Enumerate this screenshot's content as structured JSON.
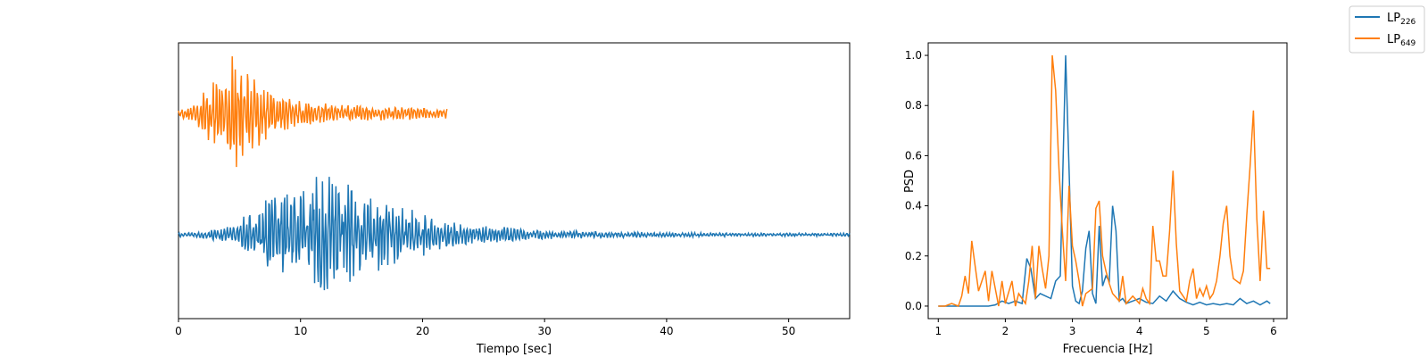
{
  "legend": {
    "entries": [
      {
        "base": "LP",
        "sub": "226",
        "color": "#1f77b4"
      },
      {
        "base": "LP",
        "sub": "649",
        "color": "#ff7f0e"
      }
    ]
  },
  "chart_data": [
    {
      "type": "line",
      "xlabel": "Tiempo [sec]",
      "ylabel": "",
      "xlim": [
        0,
        55
      ],
      "x_ticks": [
        0,
        10,
        20,
        30,
        40,
        50
      ],
      "y_ticks_shown": false,
      "note_series": "Normalized waveforms stacked vertically (offsets applied for display)",
      "series": [
        {
          "name": "LP649",
          "color": "#ff7f0e",
          "x_start": 0,
          "x_end": 22,
          "vertical_offset": 1.0,
          "envelope": [
            [
              0,
              0.05
            ],
            [
              1,
              0.12
            ],
            [
              2,
              0.3
            ],
            [
              3,
              0.55
            ],
            [
              4,
              0.75
            ],
            [
              4.5,
              0.95
            ],
            [
              5,
              0.8
            ],
            [
              6,
              0.6
            ],
            [
              7,
              0.45
            ],
            [
              8,
              0.3
            ],
            [
              9,
              0.25
            ],
            [
              10,
              0.2
            ],
            [
              12,
              0.15
            ],
            [
              14,
              0.13
            ],
            [
              16,
              0.12
            ],
            [
              18,
              0.1
            ],
            [
              20,
              0.09
            ],
            [
              22,
              0.09
            ]
          ]
        },
        {
          "name": "LP226",
          "color": "#1f77b4",
          "x_start": 0,
          "x_end": 55,
          "vertical_offset": 0.0,
          "envelope": [
            [
              0,
              0.03
            ],
            [
              2,
              0.05
            ],
            [
              4,
              0.1
            ],
            [
              6,
              0.3
            ],
            [
              8,
              0.55
            ],
            [
              10,
              0.7
            ],
            [
              12,
              0.75
            ],
            [
              13.5,
              0.9
            ],
            [
              15,
              0.55
            ],
            [
              17,
              0.45
            ],
            [
              19,
              0.35
            ],
            [
              21,
              0.22
            ],
            [
              24,
              0.12
            ],
            [
              27,
              0.1
            ],
            [
              30,
              0.06
            ],
            [
              35,
              0.04
            ],
            [
              40,
              0.03
            ],
            [
              45,
              0.025
            ],
            [
              50,
              0.02
            ],
            [
              55,
              0.02
            ]
          ]
        }
      ]
    },
    {
      "type": "line",
      "xlabel": "Frecuencia [Hz]",
      "ylabel": "PSD",
      "xlim": [
        0.85,
        6.2
      ],
      "ylim": [
        -0.05,
        1.05
      ],
      "x_ticks": [
        1,
        2,
        3,
        4,
        5,
        6
      ],
      "y_ticks": [
        0.0,
        0.2,
        0.4,
        0.6,
        0.8,
        1.0
      ],
      "y_tick_labels": [
        "0.0",
        "0.2",
        "0.4",
        "0.6",
        "0.8",
        "1.0"
      ],
      "series": [
        {
          "name": "LP226",
          "color": "#1f77b4",
          "x": [
            1.0,
            1.2,
            1.4,
            1.6,
            1.75,
            1.85,
            1.95,
            2.05,
            2.15,
            2.25,
            2.32,
            2.38,
            2.45,
            2.52,
            2.6,
            2.68,
            2.75,
            2.82,
            2.9,
            2.95,
            3.0,
            3.05,
            3.1,
            3.15,
            3.2,
            3.25,
            3.3,
            3.35,
            3.4,
            3.45,
            3.5,
            3.55,
            3.6,
            3.65,
            3.7,
            3.75,
            3.8,
            3.9,
            4.0,
            4.1,
            4.2,
            4.3,
            4.4,
            4.5,
            4.6,
            4.7,
            4.8,
            4.9,
            5.0,
            5.1,
            5.2,
            5.3,
            5.4,
            5.5,
            5.6,
            5.7,
            5.8,
            5.9,
            5.95
          ],
          "y": [
            0.0,
            0.0,
            0.0,
            0.0,
            0.0,
            0.005,
            0.02,
            0.01,
            0.02,
            0.01,
            0.19,
            0.15,
            0.03,
            0.05,
            0.04,
            0.03,
            0.1,
            0.12,
            1.0,
            0.55,
            0.08,
            0.02,
            0.01,
            0.06,
            0.23,
            0.3,
            0.05,
            0.01,
            0.32,
            0.08,
            0.12,
            0.1,
            0.4,
            0.3,
            0.02,
            0.03,
            0.01,
            0.02,
            0.03,
            0.015,
            0.01,
            0.04,
            0.02,
            0.06,
            0.03,
            0.015,
            0.005,
            0.015,
            0.005,
            0.01,
            0.005,
            0.01,
            0.005,
            0.03,
            0.01,
            0.02,
            0.005,
            0.02,
            0.01
          ]
        },
        {
          "name": "LP649",
          "color": "#ff7f0e",
          "x": [
            1.0,
            1.1,
            1.2,
            1.3,
            1.35,
            1.4,
            1.45,
            1.5,
            1.6,
            1.7,
            1.75,
            1.8,
            1.9,
            1.95,
            2.0,
            2.1,
            2.15,
            2.2,
            2.3,
            2.35,
            2.4,
            2.45,
            2.5,
            2.55,
            2.6,
            2.65,
            2.7,
            2.75,
            2.8,
            2.85,
            2.9,
            2.95,
            3.0,
            3.05,
            3.1,
            3.15,
            3.2,
            3.3,
            3.35,
            3.4,
            3.45,
            3.5,
            3.55,
            3.6,
            3.7,
            3.75,
            3.8,
            3.9,
            4.0,
            4.05,
            4.1,
            4.15,
            4.2,
            4.25,
            4.3,
            4.35,
            4.4,
            4.45,
            4.5,
            4.55,
            4.6,
            4.7,
            4.75,
            4.8,
            4.85,
            4.9,
            4.95,
            5.0,
            5.05,
            5.1,
            5.15,
            5.2,
            5.25,
            5.3,
            5.35,
            5.4,
            5.5,
            5.55,
            5.6,
            5.65,
            5.7,
            5.75,
            5.8,
            5.85,
            5.9,
            5.95
          ],
          "y": [
            0.0,
            0.0,
            0.01,
            0.0,
            0.04,
            0.12,
            0.05,
            0.26,
            0.06,
            0.14,
            0.02,
            0.14,
            0.0,
            0.1,
            0.01,
            0.1,
            0.0,
            0.05,
            0.01,
            0.1,
            0.24,
            0.03,
            0.24,
            0.15,
            0.07,
            0.2,
            1.0,
            0.86,
            0.55,
            0.3,
            0.1,
            0.48,
            0.24,
            0.18,
            0.1,
            0.0,
            0.05,
            0.07,
            0.39,
            0.42,
            0.2,
            0.14,
            0.09,
            0.05,
            0.02,
            0.12,
            0.01,
            0.04,
            0.01,
            0.07,
            0.03,
            0.01,
            0.32,
            0.18,
            0.18,
            0.12,
            0.12,
            0.3,
            0.54,
            0.25,
            0.06,
            0.02,
            0.1,
            0.15,
            0.03,
            0.07,
            0.04,
            0.08,
            0.03,
            0.05,
            0.1,
            0.2,
            0.33,
            0.4,
            0.2,
            0.11,
            0.09,
            0.14,
            0.36,
            0.56,
            0.78,
            0.35,
            0.1,
            0.38,
            0.15,
            0.15
          ]
        }
      ]
    }
  ]
}
